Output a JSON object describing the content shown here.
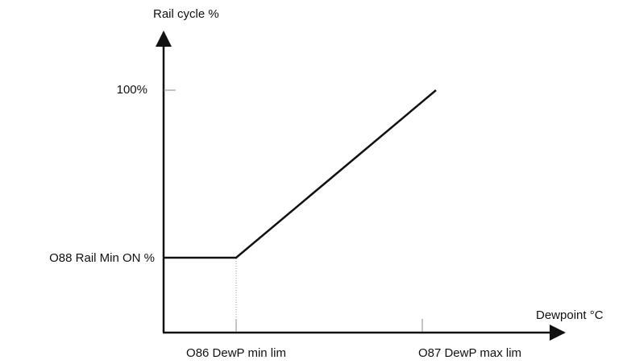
{
  "y_axis": {
    "title": "Rail cycle %",
    "labels": [
      "100%",
      "O88 Rail Min ON %"
    ]
  },
  "x_axis": {
    "title": "Dewpoint °C",
    "labels": [
      "O86 DewP min lim",
      "O87 DewP max lim"
    ]
  }
}
